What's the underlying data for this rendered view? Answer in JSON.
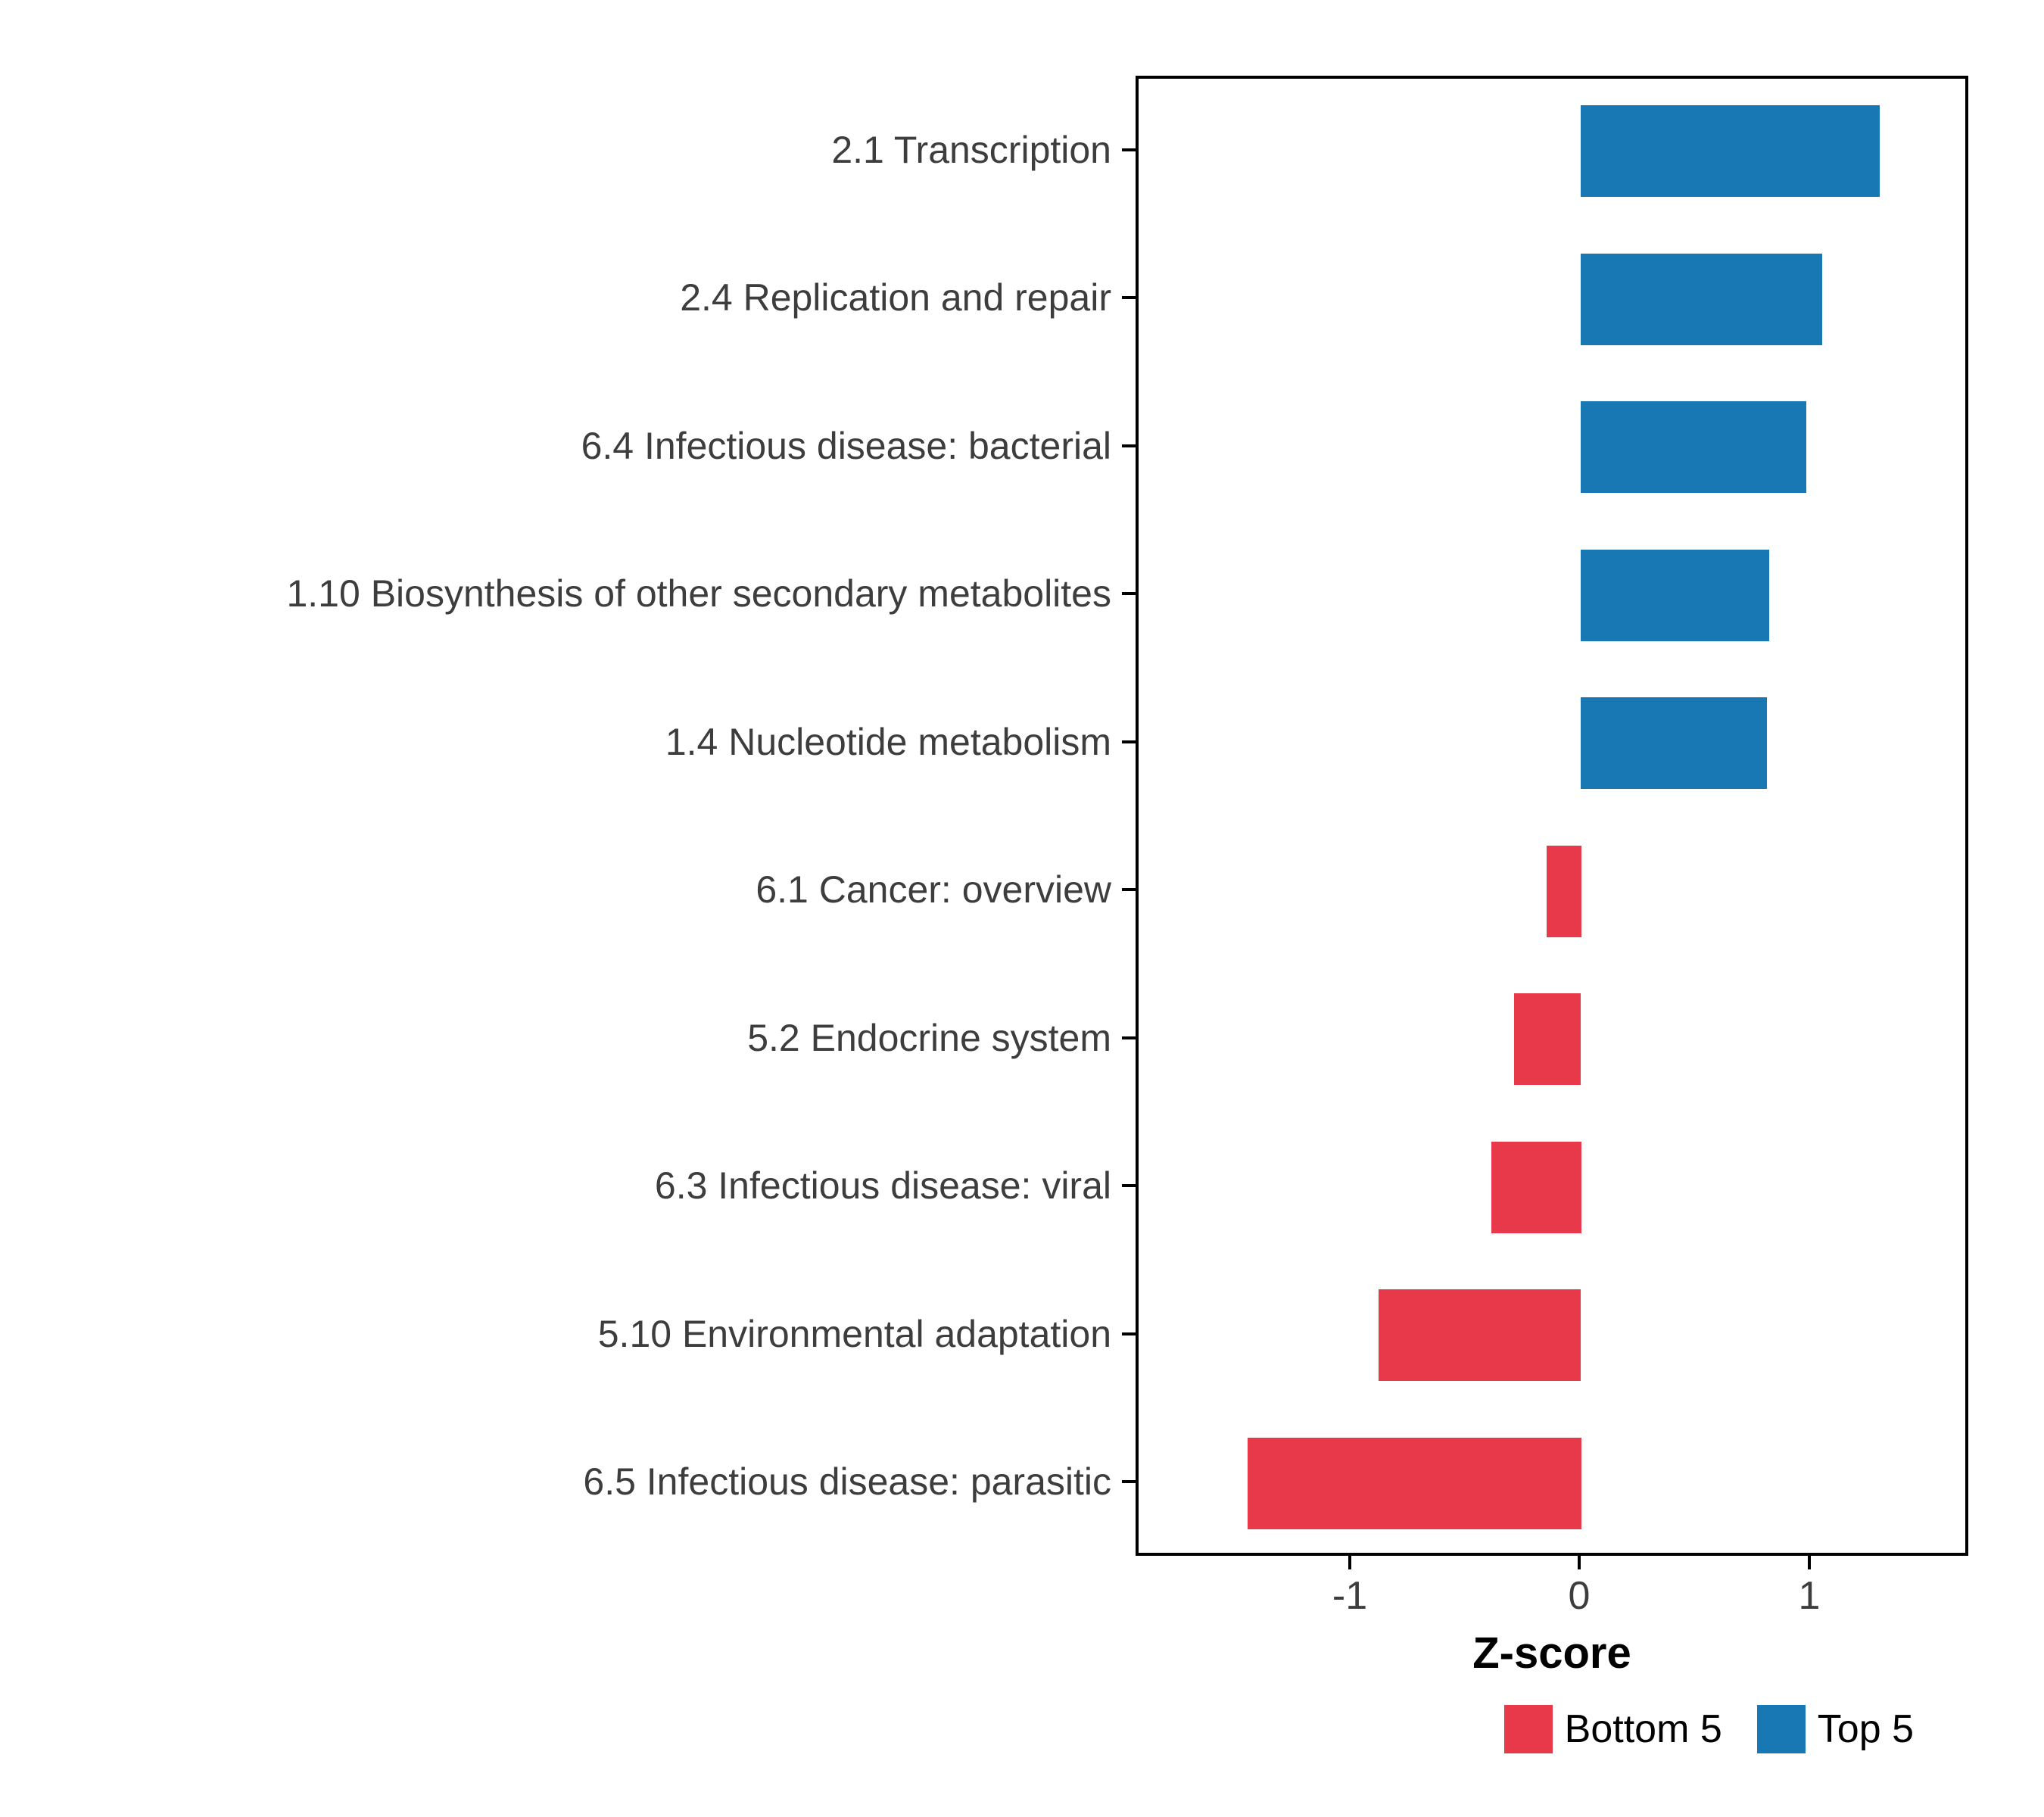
{
  "chart_data": {
    "type": "bar",
    "orientation": "horizontal",
    "title": "",
    "xlabel": "Z-score",
    "categories": [
      "2.1 Transcription",
      "2.4 Replication and repair",
      "6.4 Infectious disease: bacterial",
      "1.10 Biosynthesis of other secondary metabolites",
      "1.4 Nucleotide metabolism",
      "6.1 Cancer: overview",
      "5.2 Endocrine system",
      "6.3 Infectious disease: viral",
      "5.10 Environmental adaptation",
      "6.5 Infectious disease: parasitic"
    ],
    "values": [
      1.3,
      1.05,
      0.98,
      0.82,
      0.81,
      -0.15,
      -0.29,
      -0.39,
      -0.88,
      -1.45
    ],
    "groups": [
      "Top 5",
      "Top 5",
      "Top 5",
      "Top 5",
      "Top 5",
      "Bottom 5",
      "Bottom 5",
      "Bottom 5",
      "Bottom 5",
      "Bottom 5"
    ],
    "colors": {
      "Top 5": "#1878B4",
      "Bottom 5": "#E8394A"
    },
    "xlim": [
      -1.93,
      1.69
    ],
    "xticks": [
      "-1",
      "0",
      "1"
    ],
    "xtick_values": [
      -1,
      0,
      1
    ],
    "grid": false,
    "legend": {
      "position": "bottom-right",
      "entries": [
        {
          "label": "Bottom 5",
          "color": "#E8394A"
        },
        {
          "label": "Top 5",
          "color": "#1878B4"
        }
      ]
    }
  }
}
